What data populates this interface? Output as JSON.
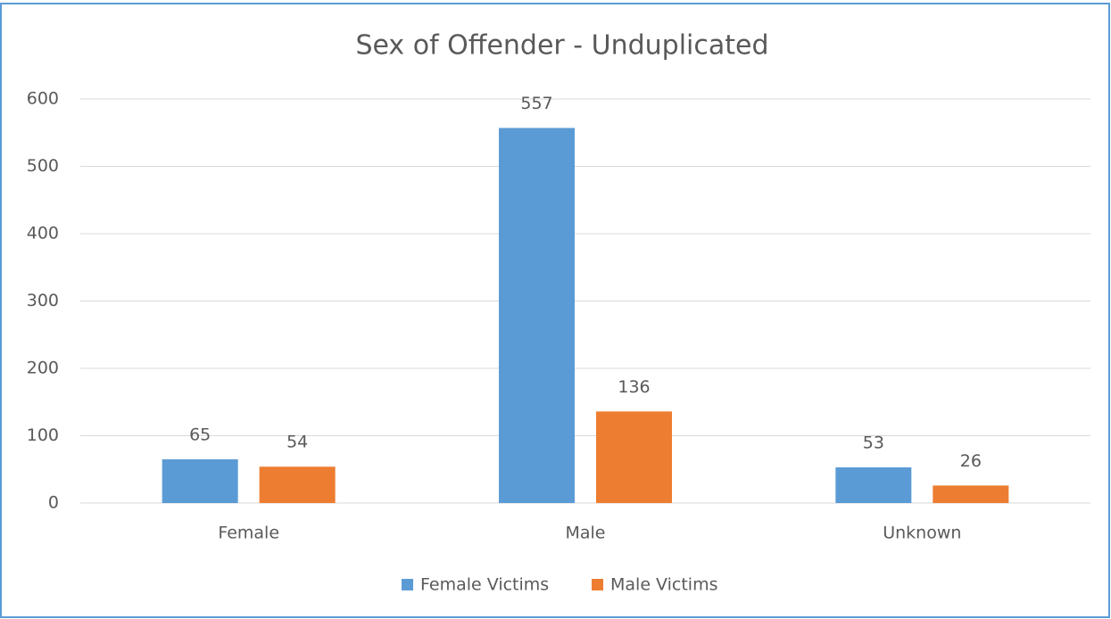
{
  "chart_data": {
    "type": "bar",
    "title": "Sex of Offender - Unduplicated",
    "categories": [
      "Female",
      "Male",
      "Unknown"
    ],
    "series": [
      {
        "name": "Female Victims",
        "color": "#5b9bd5",
        "values": [
          65,
          557,
          53
        ]
      },
      {
        "name": "Male Victims",
        "color": "#ed7d31",
        "values": [
          54,
          136,
          26
        ]
      }
    ],
    "ylim": [
      0,
      600
    ],
    "yticks": [
      0,
      100,
      200,
      300,
      400,
      500,
      600
    ],
    "grid": true,
    "legend": "bottom"
  }
}
